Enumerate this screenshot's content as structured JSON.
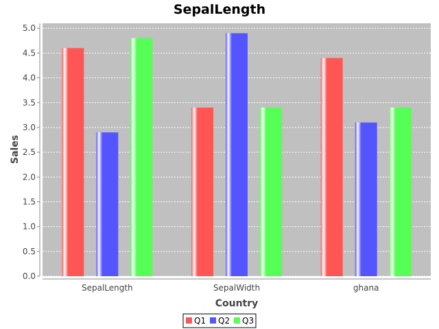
{
  "chart_data": {
    "type": "bar",
    "title": "SepalLength",
    "xlabel": "Country",
    "ylabel": "Sales",
    "categories": [
      "SepalLength",
      "SepalWidth",
      "ghana"
    ],
    "series": [
      {
        "name": "Q1",
        "color": "#ff5555",
        "values": [
          4.6,
          3.4,
          4.4
        ]
      },
      {
        "name": "Q2",
        "color": "#5555ff",
        "values": [
          2.9,
          4.9,
          3.1
        ]
      },
      {
        "name": "Q3",
        "color": "#55ff55",
        "values": [
          4.8,
          3.4,
          3.4
        ]
      }
    ],
    "ylim": [
      0,
      5.1
    ],
    "yticks": [
      "0.0",
      "0.5",
      "1.0",
      "1.5",
      "2.0",
      "2.5",
      "3.0",
      "3.5",
      "4.0",
      "4.5",
      "5.0"
    ],
    "grid": true,
    "plot_background": "#c0c0c0",
    "legend_placement": "bottom"
  }
}
